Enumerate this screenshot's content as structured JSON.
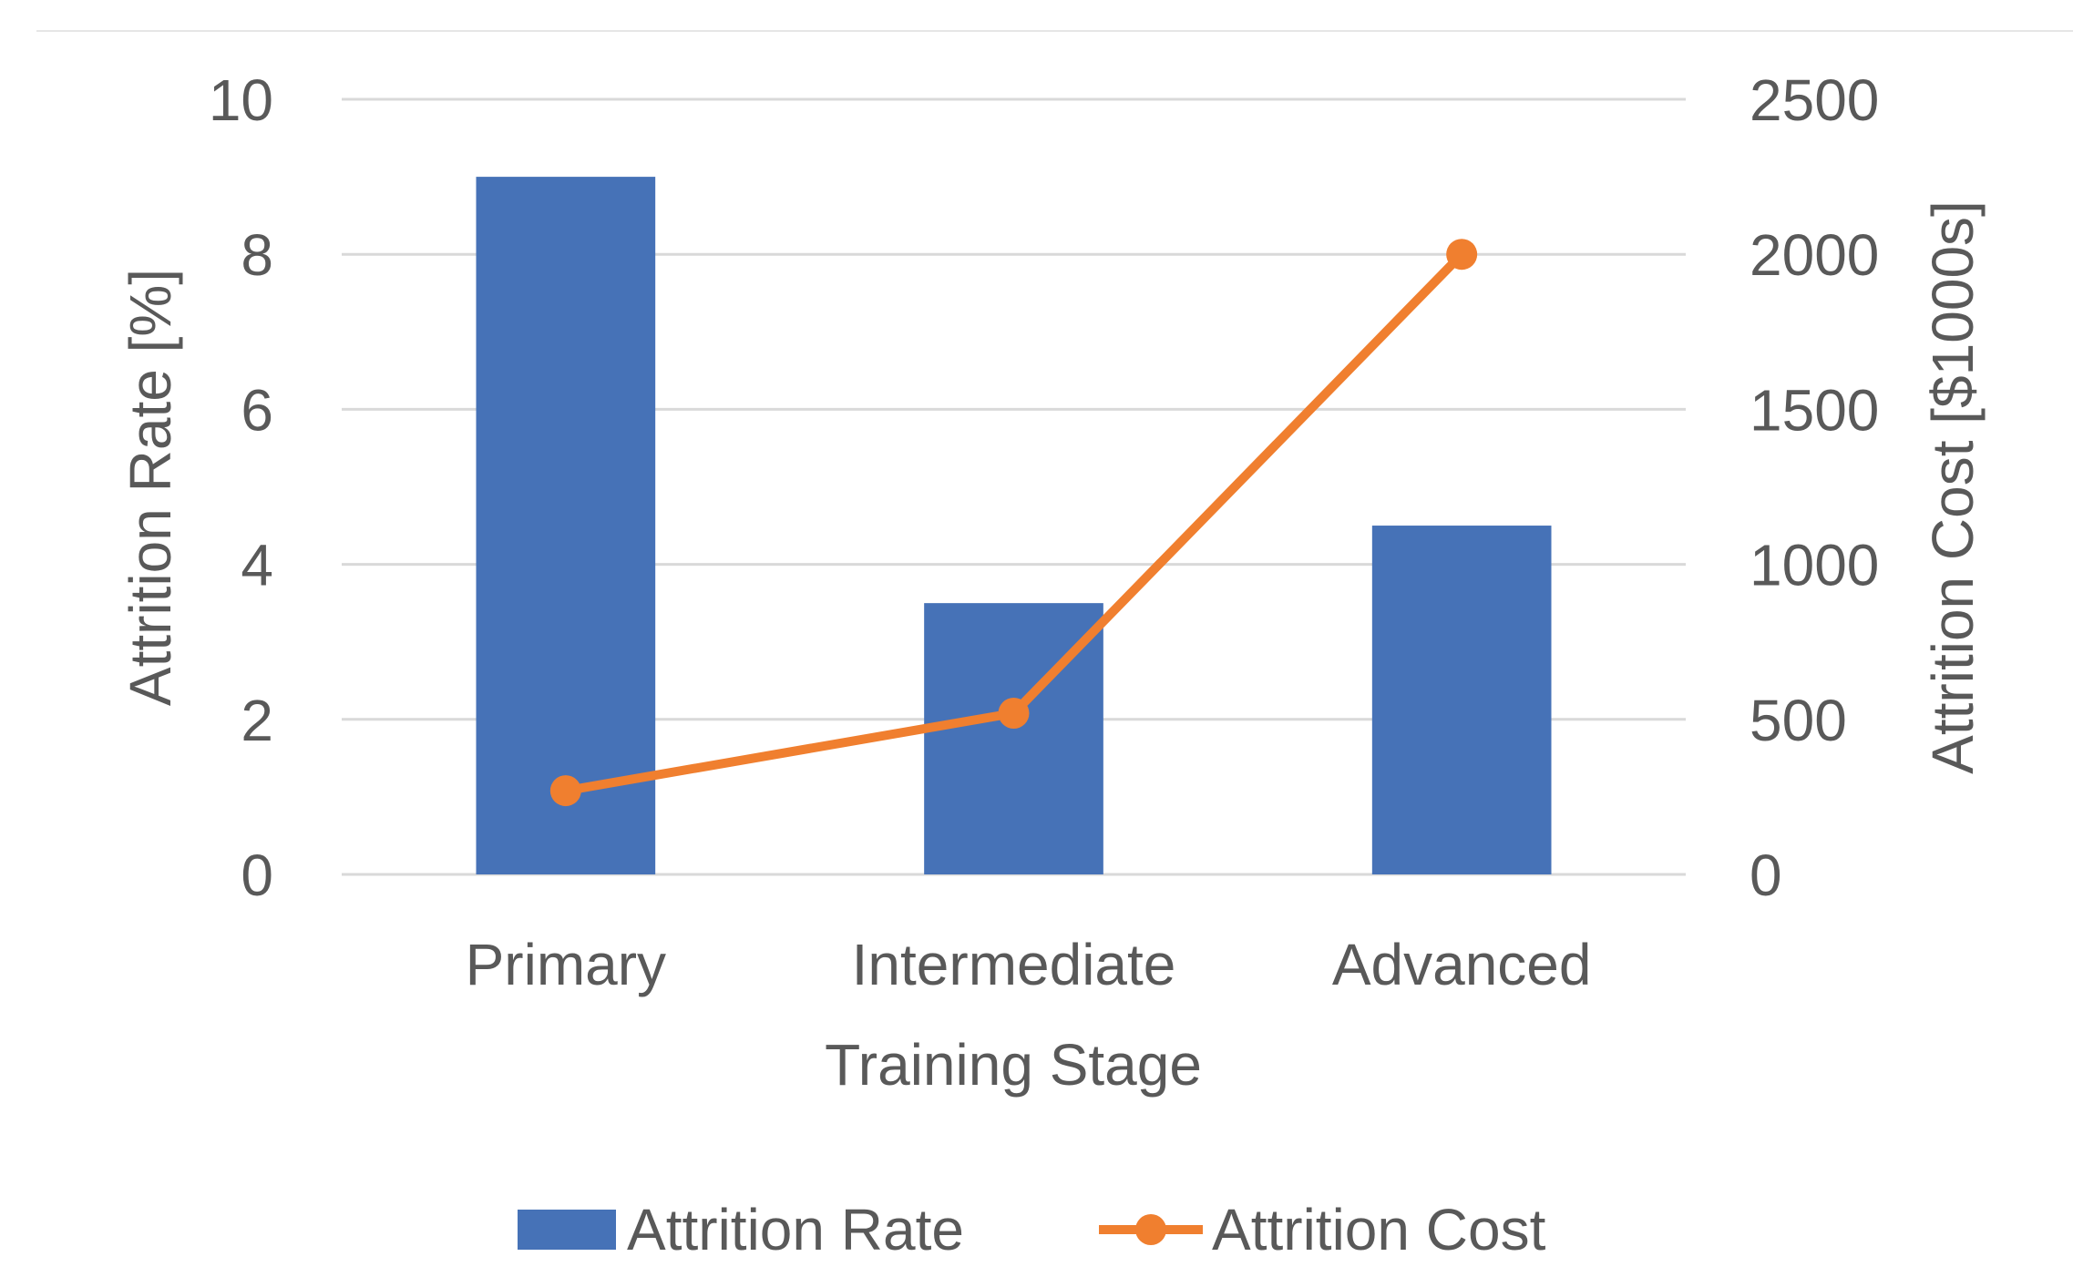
{
  "chart_data": {
    "type": "bar",
    "categories": [
      "Primary",
      "Intermediate",
      "Advanced"
    ],
    "series": [
      {
        "name": "Attrition Rate",
        "type": "bar",
        "axis": "left",
        "values": [
          9,
          3.5,
          4.5
        ]
      },
      {
        "name": "Attrition Cost",
        "type": "line",
        "axis": "right",
        "values": [
          270,
          520,
          2000
        ]
      }
    ],
    "xlabel": "Training Stage",
    "ylabel": "Attrition Rate [%]",
    "y2label": "Attrition Cost [$1000s]",
    "ylim": [
      0,
      10
    ],
    "y2lim": [
      0,
      2500
    ],
    "yticks": [
      "0",
      "2",
      "4",
      "6",
      "8",
      "10"
    ],
    "y2ticks": [
      "0",
      "500",
      "1000",
      "1500",
      "2000",
      "2500"
    ],
    "grid": true,
    "legend": "bottom",
    "colors": {
      "bar": "#4672B7",
      "line": "#F07F2F",
      "grid": "#D9D9D9",
      "text": "#595959"
    }
  }
}
